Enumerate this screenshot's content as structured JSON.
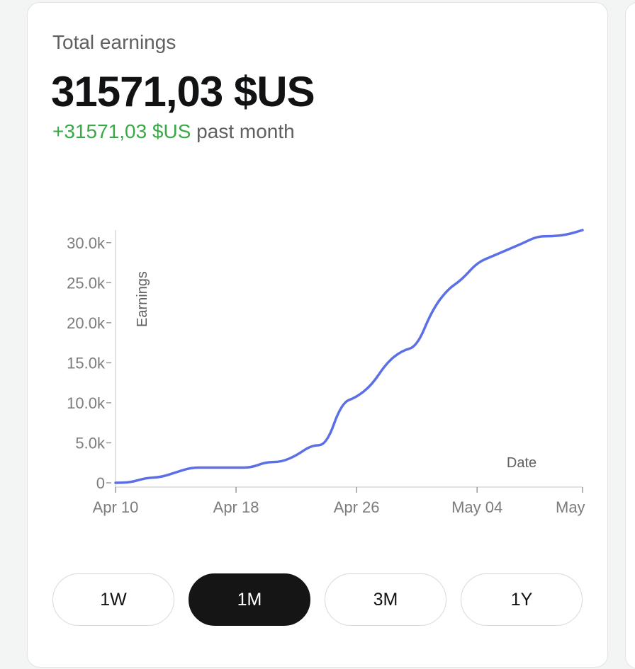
{
  "card": {
    "label": "Total earnings",
    "total": "31571,03 $US",
    "change_value": "+31571,03 $US",
    "change_period": "past month",
    "colors": {
      "positive": "#3aa845",
      "line": "#5b6fe6",
      "active_button": "#151515"
    }
  },
  "chart_data": {
    "type": "line",
    "xlabel": "Date",
    "ylabel": "Earnings",
    "ylim": [
      0,
      31571
    ],
    "y_ticks": [
      "0",
      "5.0k",
      "10.0k",
      "15.0k",
      "20.0k",
      "25.0k",
      "30.0k"
    ],
    "x_ticks": [
      "Apr 10",
      "Apr 18",
      "Apr 26",
      "May 04",
      "May"
    ],
    "series": [
      {
        "x": [
          "Apr 10",
          "Apr 11",
          "Apr 12",
          "Apr 13",
          "Apr 14",
          "Apr 15",
          "Apr 16",
          "Apr 17",
          "Apr 18",
          "Apr 19",
          "Apr 20",
          "Apr 21",
          "Apr 22",
          "Apr 23",
          "Apr 24",
          "Apr 25",
          "Apr 26",
          "Apr 27",
          "Apr 28",
          "Apr 29",
          "Apr 30",
          "May 01",
          "May 02",
          "May 03",
          "May 04",
          "May 05",
          "May 06",
          "May 07",
          "May 08",
          "May 09",
          "May 10",
          "May 11"
        ],
        "values": [
          0,
          50,
          600,
          700,
          1300,
          1900,
          1900,
          1900,
          1900,
          1900,
          2600,
          2600,
          3400,
          4700,
          4700,
          10000,
          10700,
          12200,
          15000,
          16500,
          17000,
          21500,
          24100,
          25400,
          27500,
          28300,
          29100,
          29900,
          30800,
          30800,
          31000,
          31571
        ]
      }
    ]
  },
  "timeframes": [
    "1W",
    "1M",
    "3M",
    "1Y"
  ],
  "active_timeframe": "1M"
}
